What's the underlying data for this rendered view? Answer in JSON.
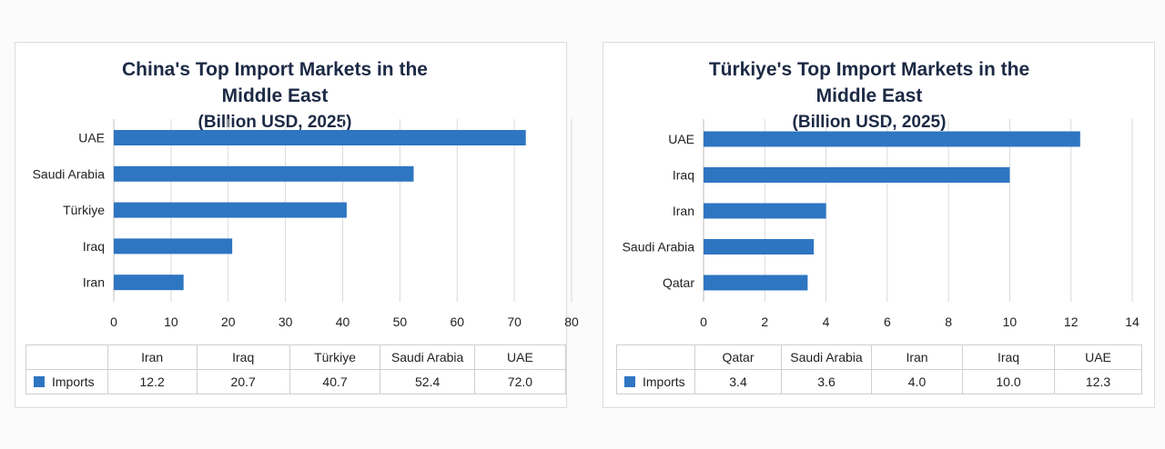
{
  "chart_data": [
    {
      "type": "bar",
      "orientation": "horizontal",
      "title": "China's Top Import Markets in the Middle East",
      "subtitle": "(Billion USD, 2025)",
      "categories": [
        "Iran",
        "Iraq",
        "Türkiye",
        "Saudi Arabia",
        "UAE"
      ],
      "series": [
        {
          "name": "Imports",
          "values": [
            12.2,
            20.7,
            40.7,
            52.4,
            72.0
          ],
          "table_values": [
            "12.2",
            "20.7",
            "40.7",
            "52.4",
            "72.0"
          ]
        }
      ],
      "xlim": [
        0,
        80
      ],
      "xticks": [
        0,
        10,
        20,
        30,
        40,
        50,
        60,
        70,
        80
      ],
      "grid": "vertical",
      "data_table": true,
      "color": "#2e75c2"
    },
    {
      "type": "bar",
      "orientation": "horizontal",
      "title": "Türkiye's Top Import Markets in the Middle East",
      "subtitle": "(Billion USD, 2025)",
      "categories": [
        "Qatar",
        "Saudi Arabia",
        "Iran",
        "Iraq",
        "UAE"
      ],
      "series": [
        {
          "name": "Imports",
          "values": [
            3.4,
            3.6,
            4.0,
            10.0,
            12.3
          ],
          "table_values": [
            "3.4",
            "3.6",
            "4.0",
            "10.0",
            "12.3"
          ]
        }
      ],
      "xlim": [
        0,
        14
      ],
      "xticks": [
        0,
        2,
        4,
        6,
        8,
        10,
        12,
        14
      ],
      "grid": "vertical",
      "data_table": true,
      "color": "#2e75c2"
    }
  ]
}
